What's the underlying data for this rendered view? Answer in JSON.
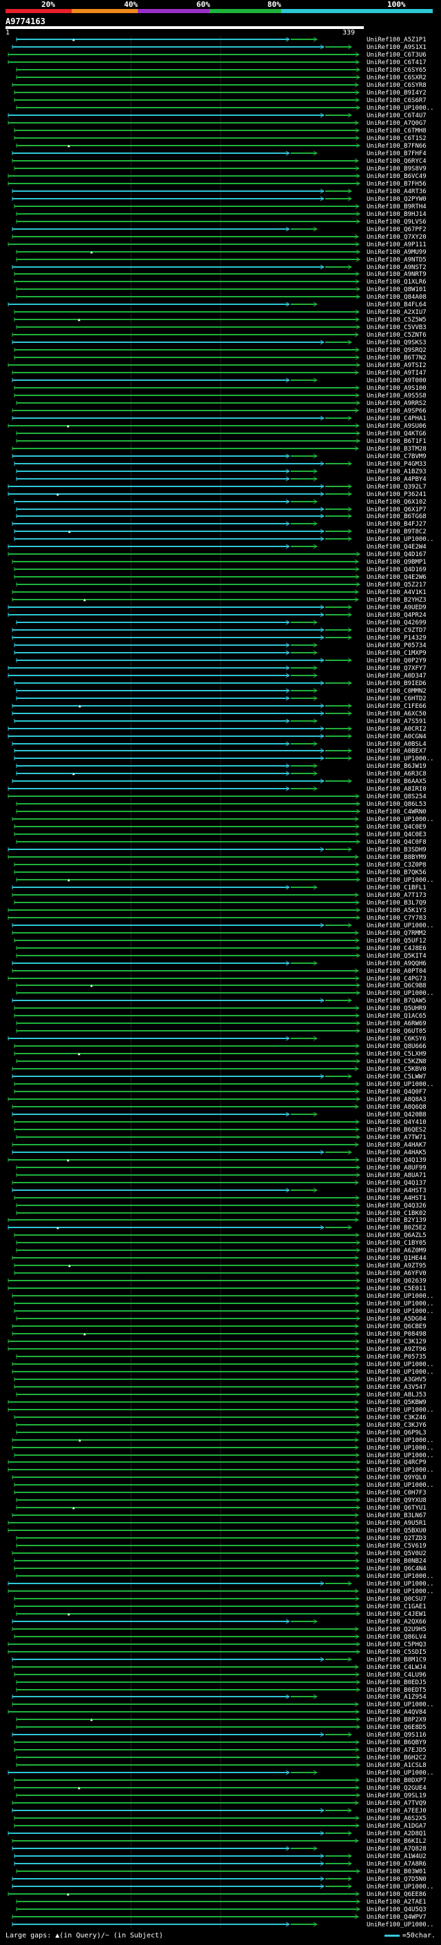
{
  "scale": {
    "labels": [
      "20%",
      "40%",
      "60%",
      "80%",
      "100%"
    ],
    "colors": [
      "#e8202a",
      "#f08a1c",
      "#9b2fc9",
      "#1eb33c",
      "#2ec7d6"
    ]
  },
  "query": {
    "id": "A9774163",
    "start": "1",
    "end": "339"
  },
  "footer": {
    "large_gaps": "Large gaps: ▲(in Query)/~ (in Subject)",
    "scale_note": "=50char."
  },
  "chart_data": {
    "type": "alignment-overview",
    "query_length": 339,
    "hits": [
      "UniRef100_A5Z1P1",
      "UniRef100_A9S1X1",
      "UniRef100_C6T3U6",
      "UniRef100_C6T417",
      "UniRef100_C6SY65",
      "UniRef100_C6SXR2",
      "UniRef100_C6SYR8",
      "UniRef100_B9I4Y2",
      "UniRef100_C6S6R7",
      "UniRef100_UP1000..",
      "UniRef100_C6T4U7",
      "UniRef100_A7Q0G7",
      "UniRef100_C6TMH8",
      "UniRef100_C6T1S2",
      "UniRef100_B7FN66",
      "UniRef100_B7FHF4",
      "UniRef100_Q6RYC4",
      "UniRef100_B9S8V9",
      "UniRef100_B6VC49",
      "UniRef100_B7FH56",
      "UniRef100_A4RT36",
      "UniRef100_Q2PYW0",
      "UniRef100_B9RTH4",
      "UniRef100_B9HJ14",
      "UniRef100_Q9LVS6",
      "UniRef100_Q67PF2",
      "UniRef100_Q7XY20",
      "UniRef100_A9P111",
      "UniRef100_A9MU99",
      "UniRef100_A9NTD5",
      "UniRef100_A9NST2",
      "UniRef100_A9NRT9",
      "UniRef100_Q1XLR6",
      "UniRef100_Q8W101",
      "UniRef100_Q84A08",
      "UniRef100_B4FL64",
      "UniRef100_A2XIU7",
      "UniRef100_C5Z5W5",
      "UniRef100_C5VVB3",
      "UniRef100_C5ZNT6",
      "UniRef100_Q9SKS3",
      "UniRef100_Q9SRQ2",
      "UniRef100_B6T7N2",
      "UniRef100_A9TSI2",
      "UniRef100_A9TI47",
      "UniRef100_A9T000",
      "UniRef100_A9S100",
      "UniRef100_A9S5S8",
      "UniRef100_A9RRS2",
      "UniRef100_A9SP66",
      "UniRef100_C4PHA1",
      "UniRef100_A9SU06",
      "UniRef100_Q4KTG6",
      "UniRef100_B6T1F1",
      "UniRef100_B3TM28",
      "UniRef100_C7BVM9",
      "UniRef100_P4GM33",
      "UniRef100_A1BZ93",
      "UniRef100_A4PBY4",
      "UniRef100_Q392L7",
      "UniRef100_P36241",
      "UniRef100_Q6X102",
      "UniRef100_Q6X1P7",
      "UniRef100_B6TG68",
      "UniRef100_B4FJ27",
      "UniRef100_B9T8C2",
      "UniRef100_UP1000..",
      "UniRef100_Q4E2W4",
      "UniRef100_Q4D167",
      "UniRef100_Q9BMP1",
      "UniRef100_Q4D169",
      "UniRef100_Q4E2W6",
      "UniRef100_Q5Z217",
      "UniRef100_A4V1K1",
      "UniRef100_B2YHZ3",
      "UniRef100_A9UED9",
      "UniRef100_Q4PR24",
      "UniRef100_Q42699",
      "UniRef100_C9ZTD7",
      "UniRef100_P14329",
      "UniRef100_P05734",
      "UniRef100_C1MXP9",
      "UniRef100_Q0P2Y9",
      "UniRef100_Q7XFY7",
      "UniRef100_A0D347",
      "UniRef100_B9IED6",
      "UniRef100_C0MMN2",
      "UniRef100_C6HTD2",
      "UniRef100_C1FE66",
      "UniRef100_A6XC50",
      "UniRef100_A7S591",
      "UniRef100_A0CRI2",
      "UniRef100_A0CGN4",
      "UniRef100_A0BSL4",
      "UniRef100_A0BEX7",
      "UniRef100_UP1000..",
      "UniRef100_B6JW19",
      "UniRef100_A6R3C8",
      "UniRef100_B6AAX5",
      "UniRef100_A8IRI0",
      "UniRef100_Q8S254",
      "UniRef100_Q86L53",
      "UniRef100_C4WRN0",
      "UniRef100_UP1000..",
      "UniRef100_Q4C0E9",
      "UniRef100_Q4C0E3",
      "UniRef100_Q4C0F8",
      "UniRef100_B3SDH9",
      "UniRef100_B8BYM9",
      "UniRef100_C3Z0P8",
      "UniRef100_B7QK56",
      "UniRef100_UP1000..",
      "UniRef100_C1BFL1",
      "UniRef100_A7T173",
      "UniRef100_B3L7Q9",
      "UniRef100_A5K1Y3",
      "UniRef100_C7Y783",
      "UniRef100_UP1000..",
      "UniRef100_Q7RMM2",
      "UniRef100_Q5UF12",
      "UniRef100_C4J8E6",
      "UniRef100_Q5KIT4",
      "UniRef100_A9QQH6",
      "UniRef100_A0PT04",
      "UniRef100_C4PG73",
      "UniRef100_Q6C9B8",
      "UniRef100_UP1000..",
      "UniRef100_B7QAW5",
      "UniRef100_Q5UHR9",
      "UniRef100_Q1AC65",
      "UniRef100_A6RW69",
      "UniRef100_Q6UT05",
      "UniRef100_C6KSY6",
      "UniRef100_Q8U666",
      "UniRef100_C5LXH9",
      "UniRef100_C5KZN8",
      "UniRef100_C5KBV0",
      "UniRef100_C5LWW7",
      "UniRef100_UP1000..",
      "UniRef100_Q4Q0F7",
      "UniRef100_A8Q8A3",
      "UniRef100_A8Q6Q8",
      "UniRef100_Q420B8",
      "UniRef100_Q4Y410",
      "UniRef100_B6QES2",
      "UniRef100_A7TW71",
      "UniRef100_A4HAK7",
      "UniRef100_A4HAK5",
      "UniRef100_Q4Q139",
      "UniRef100_A8UF99",
      "UniRef100_A8UA71",
      "UniRef100_Q4Q137",
      "UniRef100_A4HST3",
      "UniRef100_A4HST1",
      "UniRef100_Q4Q326",
      "UniRef100_C1BK02",
      "UniRef100_B2Y139",
      "UniRef100_B0Z5E2",
      "UniRef100_Q6AZL5",
      "UniRef100_C1BY05",
      "UniRef100_A6Z0M9",
      "UniRef100_Q1HE44",
      "UniRef100_A9ZT95",
      "UniRef100_A6YFV0",
      "UniRef100_Q02639",
      "UniRef100_C5E011",
      "UniRef100_UP1000..",
      "UniRef100_UP1000..",
      "UniRef100_UP1000..",
      "UniRef100_A5DG04",
      "UniRef100_Q6CBE9",
      "UniRef100_P08498",
      "UniRef100_C3K129",
      "UniRef100_A9ZT96",
      "UniRef100_P05735",
      "UniRef100_UP1000..",
      "UniRef100_UP1000..",
      "UniRef100_A3GHV5",
      "UniRef100_A3V547",
      "UniRef100_A8LJ53",
      "UniRef100_Q5KBW9",
      "UniRef100_UP1000..",
      "UniRef100_C3KZ46",
      "UniRef100_C3KJY6",
      "UniRef100_Q6P9L3",
      "UniRef100_UP1000..",
      "UniRef100_UP1000..",
      "UniRef100_UP1000..",
      "UniRef100_Q4RCP9",
      "UniRef100_UP1000..",
      "UniRef100_Q9YQL0",
      "UniRef100_UP1000..",
      "UniRef100_C0H7F3",
      "UniRef100_Q9YXU8",
      "UniRef100_Q6TYU1",
      "UniRef100_B3LN67",
      "UniRef100_A9U5R1",
      "UniRef100_Q5BXU0",
      "UniRef100_Q2TZD3",
      "UniRef100_C5V619",
      "UniRef100_Q5V0U2",
      "UniRef100_B0NB24",
      "UniRef100_Q6C4N4",
      "UniRef100_UP1000..",
      "UniRef100_UP1000..",
      "UniRef100_UP1000..",
      "UniRef100_Q0CSU7",
      "UniRef100_C1GAE1",
      "UniRef100_C4JEW1",
      "UniRef100_A2QX66",
      "UniRef100_Q2U9H5",
      "UniRef100_Q86LV4",
      "UniRef100_C5PHQ3",
      "UniRef100_C5SDI5",
      "UniRef100_B8M1C9",
      "UniRef100_C4LWJ4",
      "UniRef100_C4LU96",
      "UniRef100_B0EDJ5",
      "UniRef100_B0EDT5",
      "UniRef100_A1Z954",
      "UniRef100_UP1000..",
      "UniRef100_A4QV84",
      "UniRef100_B8P2X9",
      "UniRef100_Q6E8D5",
      "UniRef100_Q9S116",
      "UniRef100_B6QBY9",
      "UniRef100_A7EJD5",
      "UniRef100_B6H2C2",
      "UniRef100_A1CSL8",
      "UniRef100_UP1000..",
      "UniRef100_B0DXP7",
      "UniRef100_Q2GUE4",
      "UniRef100_Q9SL19",
      "UniRef100_A7TVQ9",
      "UniRef100_A7EEJ0",
      "UniRef100_A6S2X5",
      "UniRef100_A1DGA7",
      "UniRef100_A2D8Q1",
      "UniRef100_B6KIL2",
      "UniRef100_A7Q828",
      "UniRef100_A1W4U2",
      "UniRef100_A7A8R6",
      "UniRef100_B03W01",
      "UniRef100_Q7D5N0",
      "UniRef100_UP1000..",
      "UniRef100_Q6EE86",
      "UniRef100_A2TAE1",
      "UniRef100_Q4U5Q3",
      "UniRef100_Q4WPV7",
      "UniRef100_UP1000.."
    ]
  }
}
